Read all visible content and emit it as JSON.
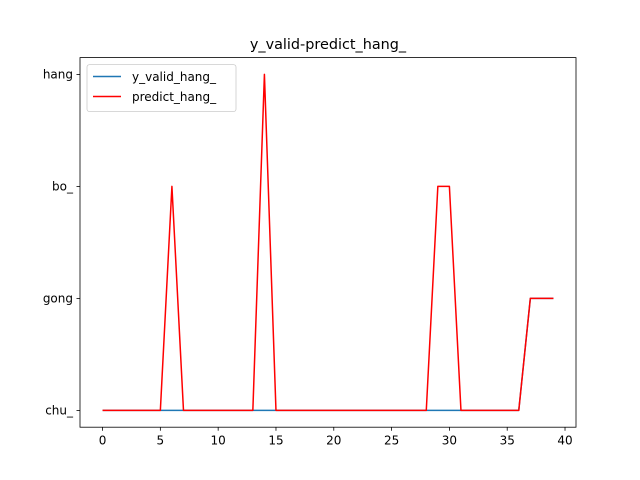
{
  "chart_data": {
    "type": "line",
    "title": "y_valid-predict_hang_",
    "xlabel": "",
    "ylabel": "",
    "xlim": [
      -1.95,
      40.95
    ],
    "ylim": [
      -0.15,
      3.15
    ],
    "xticks": [
      0,
      5,
      10,
      15,
      20,
      25,
      30,
      35,
      40
    ],
    "yticks": [
      0,
      1,
      2,
      3
    ],
    "ytick_labels": [
      "chu_",
      "gong",
      "bo_",
      "hang"
    ],
    "grid": false,
    "legend_position": "top-left",
    "x": [
      0,
      1,
      2,
      3,
      4,
      5,
      6,
      7,
      8,
      9,
      10,
      11,
      12,
      13,
      14,
      15,
      16,
      17,
      18,
      19,
      20,
      21,
      22,
      23,
      24,
      25,
      26,
      27,
      28,
      29,
      30,
      31,
      32,
      33,
      34,
      35,
      36,
      37,
      38,
      39
    ],
    "series": [
      {
        "name": "y_valid_hang_",
        "color": "#1f77b4",
        "values": [
          0,
          0,
          0,
          0,
          0,
          0,
          0,
          0,
          0,
          0,
          0,
          0,
          0,
          0,
          0,
          0,
          0,
          0,
          0,
          0,
          0,
          0,
          0,
          0,
          0,
          0,
          0,
          0,
          0,
          0,
          0,
          0,
          0,
          0,
          0,
          0,
          0,
          1,
          1,
          1
        ]
      },
      {
        "name": "predict_hang_",
        "color": "#ff0000",
        "values": [
          0,
          0,
          0,
          0,
          0,
          0,
          2,
          0,
          0,
          0,
          0,
          0,
          0,
          0,
          3,
          0,
          0,
          0,
          0,
          0,
          0,
          0,
          0,
          0,
          0,
          0,
          0,
          0,
          0,
          2,
          2,
          0,
          0,
          0,
          0,
          0,
          0,
          1,
          1,
          1
        ]
      }
    ]
  }
}
